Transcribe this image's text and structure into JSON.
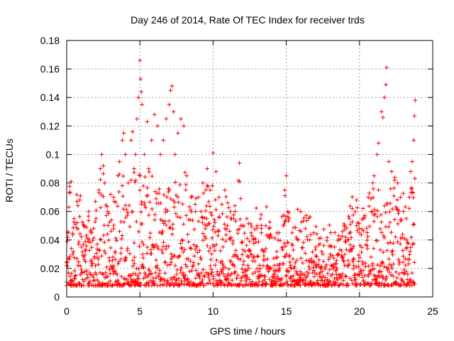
{
  "chart_data": {
    "type": "scatter",
    "title": "Day 246 of 2014, Rate Of TEC Index for receiver trds",
    "xlabel": "GPS time / hours",
    "ylabel": "ROTI / TECUs",
    "xlim": [
      0,
      25
    ],
    "ylim": [
      0,
      0.18
    ],
    "x_ticks": [
      0,
      5,
      10,
      15,
      20,
      25
    ],
    "x_tick_labels": [
      "0",
      "5",
      "10",
      "15",
      "20",
      "25"
    ],
    "y_ticks": [
      0,
      0.02,
      0.04,
      0.06,
      0.08,
      0.1,
      0.12,
      0.14,
      0.16,
      0.18
    ],
    "y_tick_labels": [
      "0",
      "0.02",
      "0.04",
      "0.06",
      "0.08",
      "0.1",
      "0.12",
      "0.14",
      "0.16",
      "0.18"
    ],
    "grid": true,
    "marker": "+",
    "color": "#ff0000",
    "series": [
      {
        "name": "ROTI",
        "points": [
          [
            0.0,
            0.022
          ],
          [
            0.1,
            0.045
          ],
          [
            0.15,
            0.063
          ],
          [
            0.2,
            0.073
          ],
          [
            0.3,
            0.081
          ],
          [
            0.4,
            0.03
          ],
          [
            0.5,
            0.055
          ],
          [
            0.7,
            0.067
          ],
          [
            0.9,
            0.068
          ],
          [
            1.0,
            0.035
          ],
          [
            1.2,
            0.05
          ],
          [
            1.5,
            0.06
          ],
          [
            1.7,
            0.045
          ],
          [
            2.0,
            0.055
          ],
          [
            2.2,
            0.075
          ],
          [
            2.3,
            0.09
          ],
          [
            2.4,
            0.1
          ],
          [
            2.5,
            0.092
          ],
          [
            2.6,
            0.08
          ],
          [
            2.8,
            0.06
          ],
          [
            3.0,
            0.072
          ],
          [
            3.2,
            0.07
          ],
          [
            3.5,
            0.085
          ],
          [
            3.6,
            0.095
          ],
          [
            3.8,
            0.11
          ],
          [
            3.9,
            0.115
          ],
          [
            4.0,
            0.1
          ],
          [
            4.2,
            0.08
          ],
          [
            4.4,
            0.11
          ],
          [
            4.5,
            0.116
          ],
          [
            4.6,
            0.09
          ],
          [
            4.7,
            0.1
          ],
          [
            4.8,
            0.125
          ],
          [
            4.9,
            0.14
          ],
          [
            5.0,
            0.166
          ],
          [
            5.05,
            0.153
          ],
          [
            5.1,
            0.144
          ],
          [
            5.15,
            0.135
          ],
          [
            5.3,
            0.1
          ],
          [
            5.5,
            0.123
          ],
          [
            5.6,
            0.09
          ],
          [
            5.8,
            0.11
          ],
          [
            6.0,
            0.128
          ],
          [
            6.2,
            0.12
          ],
          [
            6.4,
            0.1
          ],
          [
            6.6,
            0.11
          ],
          [
            6.8,
            0.125
          ],
          [
            7.0,
            0.135
          ],
          [
            7.1,
            0.145
          ],
          [
            7.2,
            0.148
          ],
          [
            7.3,
            0.13
          ],
          [
            7.4,
            0.1
          ],
          [
            7.6,
            0.115
          ],
          [
            7.8,
            0.125
          ],
          [
            8.0,
            0.12
          ],
          [
            8.2,
            0.085
          ],
          [
            8.5,
            0.07
          ],
          [
            8.8,
            0.06
          ],
          [
            9.0,
            0.07
          ],
          [
            9.3,
            0.08
          ],
          [
            9.6,
            0.09
          ],
          [
            9.8,
            0.075
          ],
          [
            10.0,
            0.101
          ],
          [
            10.2,
            0.088
          ],
          [
            10.4,
            0.07
          ],
          [
            10.6,
            0.065
          ],
          [
            10.8,
            0.075
          ],
          [
            11.0,
            0.066
          ],
          [
            11.2,
            0.055
          ],
          [
            11.5,
            0.06
          ],
          [
            11.8,
            0.094
          ],
          [
            12.0,
            0.05
          ],
          [
            12.3,
            0.055
          ],
          [
            12.6,
            0.045
          ],
          [
            13.0,
            0.05
          ],
          [
            13.3,
            0.045
          ],
          [
            13.6,
            0.05
          ],
          [
            14.0,
            0.042
          ],
          [
            14.5,
            0.045
          ],
          [
            14.8,
            0.05
          ],
          [
            14.9,
            0.075
          ],
          [
            15.0,
            0.085
          ],
          [
            15.1,
            0.06
          ],
          [
            15.4,
            0.045
          ],
          [
            15.8,
            0.04
          ],
          [
            16.0,
            0.046
          ],
          [
            16.3,
            0.048
          ],
          [
            16.6,
            0.04
          ],
          [
            17.0,
            0.035
          ],
          [
            17.5,
            0.03
          ],
          [
            18.0,
            0.03
          ],
          [
            18.3,
            0.035
          ],
          [
            18.6,
            0.04
          ],
          [
            19.0,
            0.05
          ],
          [
            19.3,
            0.055
          ],
          [
            19.5,
            0.062
          ],
          [
            19.8,
            0.05
          ],
          [
            20.0,
            0.045
          ],
          [
            20.3,
            0.055
          ],
          [
            20.6,
            0.07
          ],
          [
            20.9,
            0.08
          ],
          [
            21.0,
            0.085
          ],
          [
            21.2,
            0.1
          ],
          [
            21.3,
            0.108
          ],
          [
            21.5,
            0.13
          ],
          [
            21.6,
            0.126
          ],
          [
            21.7,
            0.14
          ],
          [
            21.8,
            0.149
          ],
          [
            21.85,
            0.161
          ],
          [
            22.0,
            0.095
          ],
          [
            22.2,
            0.088
          ],
          [
            22.4,
            0.082
          ],
          [
            22.6,
            0.08
          ],
          [
            22.8,
            0.07
          ],
          [
            23.0,
            0.06
          ],
          [
            23.2,
            0.055
          ],
          [
            23.4,
            0.07
          ],
          [
            23.5,
            0.088
          ],
          [
            23.6,
            0.095
          ],
          [
            23.7,
            0.11
          ],
          [
            23.75,
            0.127
          ],
          [
            23.8,
            0.138
          ]
        ]
      }
    ]
  }
}
